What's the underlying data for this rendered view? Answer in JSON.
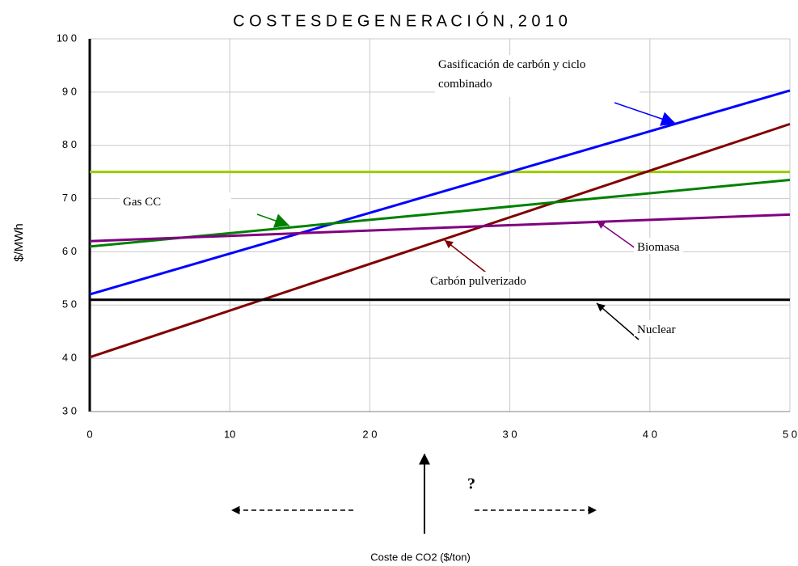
{
  "chart_data": {
    "type": "line",
    "title": "C O S T E S  D E  G E N E R A C I Ó N , 2 0 1 0",
    "x_label": "Coste de CO2 ($/ton)",
    "y_label": "$/MWh",
    "x": [
      0,
      50
    ],
    "series": [
      {
        "color": "#99cc00",
        "values": [
          75,
          75
        ]
      },
      {
        "name": "Gasificación  de carbón y ciclo combinado",
        "color": "#0000ff",
        "values": [
          52,
          90.3
        ]
      },
      {
        "name": "Carbón pulverizado",
        "color": "#800000",
        "values": [
          40.2,
          84
        ]
      },
      {
        "name": "Gas CC",
        "color": "#008000",
        "values": [
          61,
          73.5
        ]
      },
      {
        "name": "Biomasa",
        "color": "#800080",
        "values": [
          62,
          67
        ]
      },
      {
        "name": "Nuclear",
        "color": "#000000",
        "values": [
          51,
          51
        ]
      }
    ],
    "annotations": [
      "?"
    ],
    "xlim": [
      0,
      50
    ],
    "ylim": [
      30,
      100
    ],
    "xticks": [
      0,
      10,
      {
        "value": 20,
        "label": "2 0"
      },
      {
        "value": 30,
        "label": "3 0"
      },
      {
        "value": 40,
        "label": "4 0"
      },
      {
        "value": 50,
        "label": "5 0"
      }
    ],
    "yticks": [
      {
        "value": 30,
        "label": "3 0"
      },
      {
        "value": 40,
        "label": "4 0"
      },
      {
        "value": 50,
        "label": "5 0"
      },
      {
        "value": 60,
        "label": "6 0"
      },
      {
        "value": 70,
        "label": "7 0"
      },
      {
        "value": 80,
        "label": "8 0"
      },
      {
        "value": 90,
        "label": "9 0"
      },
      {
        "value": 100,
        "label": "10 0"
      }
    ],
    "grid": true
  }
}
